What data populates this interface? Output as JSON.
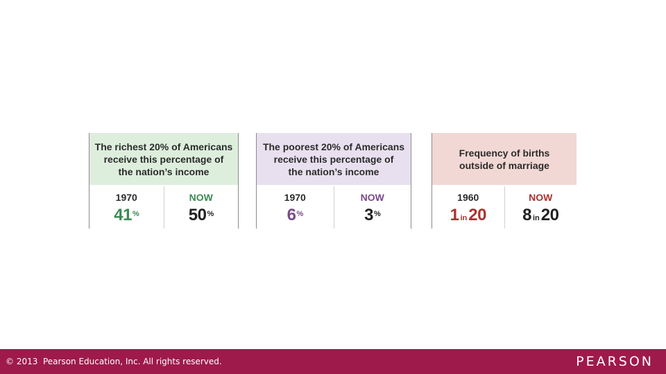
{
  "panels": [
    {
      "header": "The richest 20% of Americans\nreceive this percentage of\nthe nation’s income",
      "header_bg": "#ddeedd",
      "accent": "#3a8a52",
      "left_label": "1970",
      "left_value": "41",
      "left_suffix": "%",
      "right_label": "NOW",
      "right_value": "50",
      "right_suffix": "%"
    },
    {
      "header": "The poorest 20% of Americans\nreceive this percentage of\nthe nation’s income",
      "header_bg": "#e8e0ee",
      "accent": "#7a4a8c",
      "left_label": "1970",
      "left_value": "6",
      "left_suffix": "%",
      "right_label": "NOW",
      "right_value": "3",
      "right_suffix": "%"
    },
    {
      "header": "Frequency of births\noutside of marriage",
      "header_bg": "#f2d8d4",
      "accent": "#a8332f",
      "left_label": "1960",
      "left_value_a": "1",
      "left_mid": "in",
      "left_value_b": "20",
      "right_label": "NOW",
      "right_value_a": "8",
      "right_mid": "in",
      "right_value_b": "20"
    }
  ],
  "footer": {
    "copyright": "© 2013  Pearson Education, Inc. All rights reserved.",
    "logo": "PEARSON",
    "bg": "#9e1a4a"
  }
}
